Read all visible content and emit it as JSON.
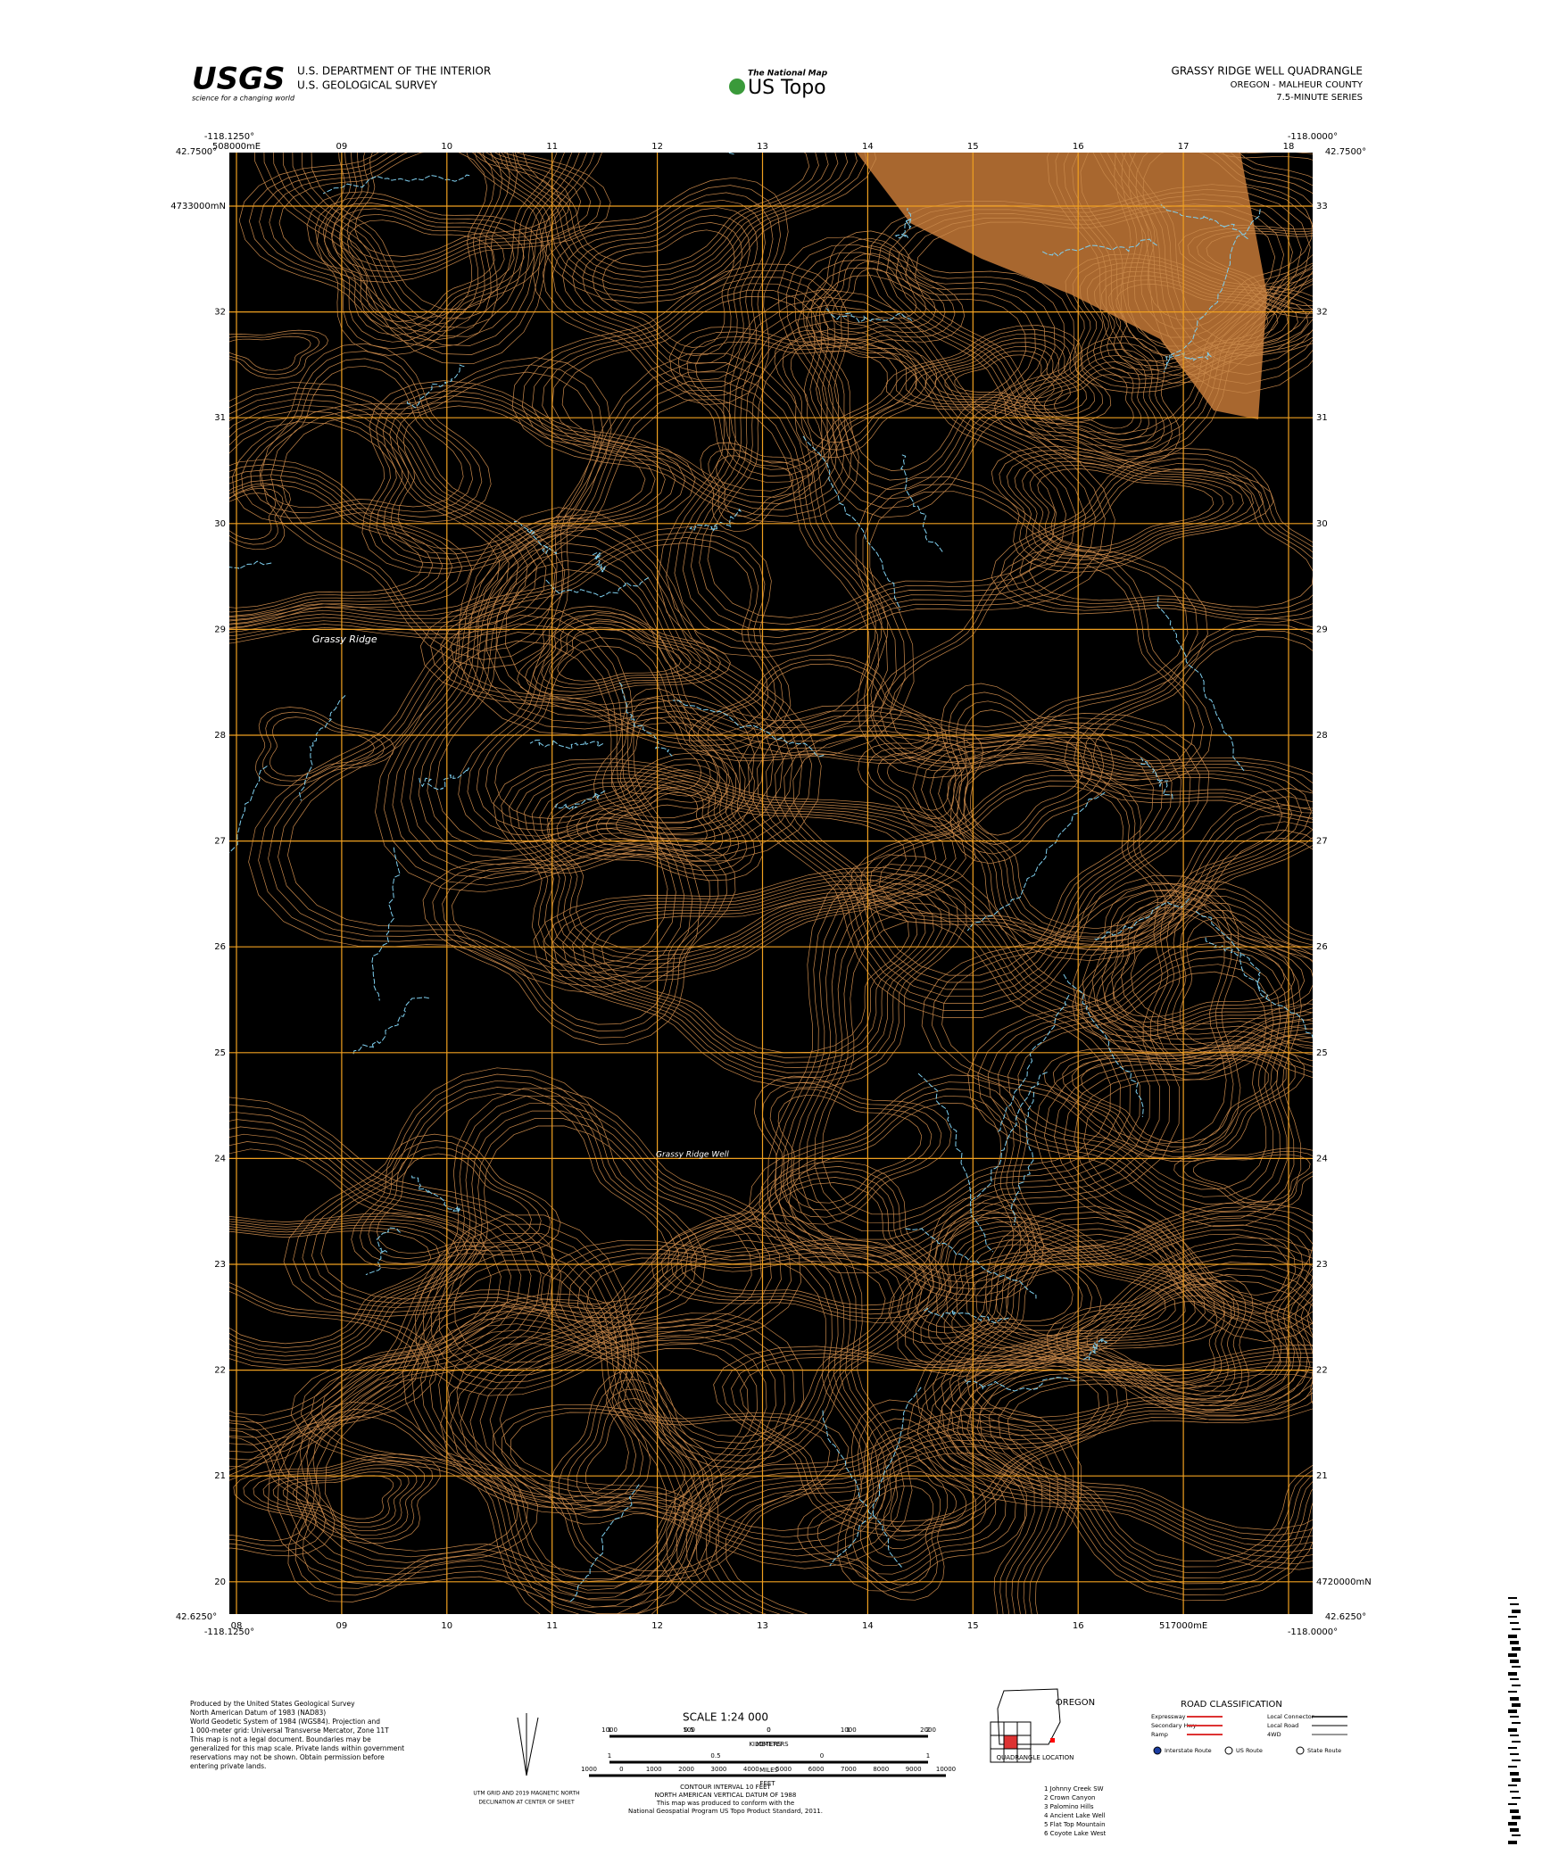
{
  "header": {
    "agency_logo": "USGS",
    "agency_tagline": "science for a changing world",
    "department": "U.S. DEPARTMENT OF THE INTERIOR",
    "survey": "U.S. GEOLOGICAL SURVEY",
    "national_map": "The National Map",
    "product": "US Topo",
    "quadrangle": "GRASSY RIDGE WELL QUADRANGLE",
    "state_county": "OREGON - MALHEUR COUNTY",
    "series": "7.5-MINUTE SERIES"
  },
  "map": {
    "corners": {
      "nw_lon": "-118.1250°",
      "nw_lat": "42.7500°",
      "ne_lon": "-118.0000°",
      "ne_lat": "42.7500°",
      "sw_lon": "-118.1250°",
      "sw_lat": "42.6250°",
      "se_lon": "-118.0000°",
      "se_lat": "42.6250°"
    },
    "top_eastings": [
      "508000mE",
      "09",
      "10",
      "11",
      "12",
      "13",
      "14",
      "15",
      "16",
      "17",
      "18"
    ],
    "bottom_eastings": [
      "08",
      "09",
      "10",
      "11",
      "12",
      "13",
      "14",
      "15",
      "16",
      "517000mE"
    ],
    "left_northings": [
      "4733000mN",
      "32",
      "31",
      "30",
      "29",
      "28",
      "27",
      "26",
      "25",
      "24",
      "23",
      "22",
      "21",
      "20"
    ],
    "right_northings": [
      "33",
      "32",
      "31",
      "30",
      "29",
      "28",
      "27",
      "26",
      "25",
      "24",
      "23",
      "22",
      "21",
      "4720000mN"
    ],
    "place_ridge": "Grassy Ridge",
    "place_well": "Grassy Ridge Well"
  },
  "footer": {
    "produced": [
      "Produced by the United States Geological Survey",
      "North American Datum of 1983 (NAD83)",
      "World Geodetic System of 1984 (WGS84). Projection and",
      "1 000-meter grid: Universal Transverse Mercator, Zone 11T",
      "This map is not a legal document. Boundaries may be",
      "generalized for this map scale. Private lands within government",
      "reservations may not be shown. Obtain permission before",
      "entering private lands."
    ],
    "declination": [
      "UTM GRID AND 2019 MAGNETIC NORTH",
      "DECLINATION AT CENTER OF SHEET"
    ],
    "scale": "SCALE 1:24 000",
    "km_labels": [
      "1",
      "0.5",
      "0",
      "1",
      "2"
    ],
    "km_unit": "KILOMETERS",
    "m_labels": [
      "1000",
      "500",
      "0",
      "1000",
      "2000"
    ],
    "m_unit": "METERS",
    "mi_labels": [
      "1",
      "0.5",
      "0",
      "1"
    ],
    "mi_unit": "MILES",
    "ft_labels": [
      "1000",
      "0",
      "1000",
      "2000",
      "3000",
      "4000",
      "5000",
      "6000",
      "7000",
      "8000",
      "9000",
      "10000"
    ],
    "ft_unit": "FEET",
    "contour": [
      "CONTOUR INTERVAL 10 FEET",
      "NORTH AMERICAN VERTICAL DATUM OF 1988",
      "This map was produced to conform with the",
      "National Geospatial Program US Topo Product Standard, 2011."
    ],
    "state": "OREGON",
    "location": "QUADRANGLE LOCATION",
    "adjoining": [
      "1 Johnny Creek SW",
      "2 Crown Canyon",
      "3 Palomino Hills",
      "4 Ancient Lake Well",
      "5 Flat Top Mountain",
      "6 Coyote Lake West"
    ],
    "road_title": "ROAD CLASSIFICATION",
    "roads_left": [
      "Expressway",
      "Secondary Hwy",
      "Ramp"
    ],
    "roads_right": [
      "Local Connector",
      "Local Road",
      "4WD"
    ],
    "routes": [
      "Interstate Route",
      "US Route",
      "State Route"
    ]
  }
}
